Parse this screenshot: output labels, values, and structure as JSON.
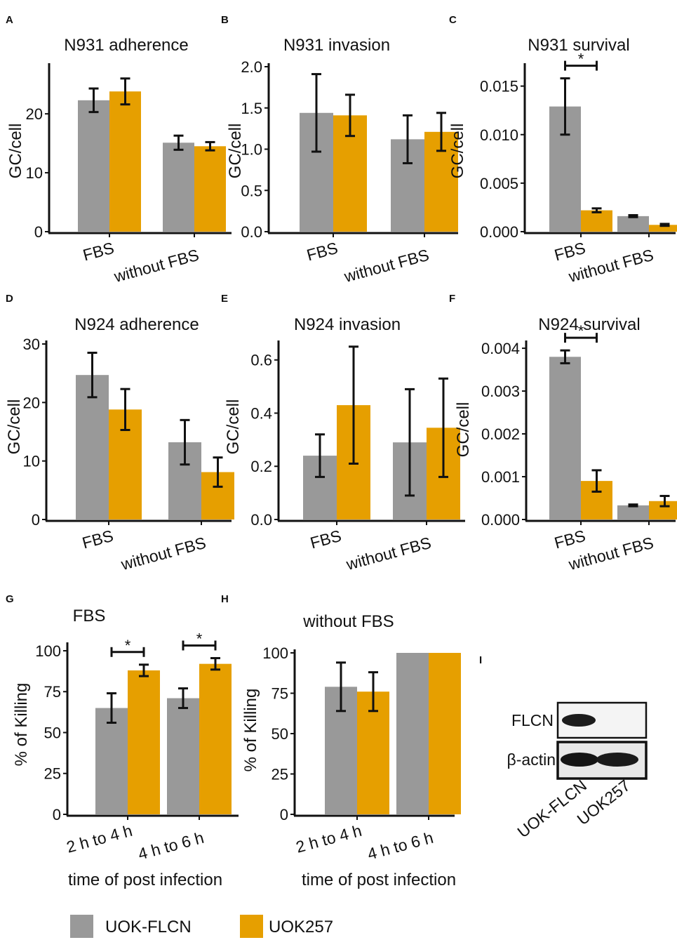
{
  "chart_data": [
    {
      "id": "A",
      "letter": "A",
      "type": "bar",
      "title": "N931 adherence",
      "ylabel": "GC/cell",
      "xlabel": "",
      "categories": [
        "FBS",
        "without FBS"
      ],
      "ylim": [
        0,
        28
      ],
      "yticks": [
        0,
        10,
        20
      ],
      "tick_labels": [
        "0",
        "10",
        "20"
      ],
      "series": [
        {
          "name": "UOK-FLCN",
          "values": [
            22.3,
            15.1
          ],
          "errors": [
            2.0,
            1.2
          ]
        },
        {
          "name": "UOK257",
          "values": [
            23.8,
            14.5
          ],
          "errors": [
            2.2,
            0.7
          ]
        }
      ],
      "significance": []
    },
    {
      "id": "B",
      "letter": "B",
      "type": "bar",
      "title": "N931 invasion",
      "ylabel": "GC/cell",
      "xlabel": "",
      "categories": [
        "FBS",
        "without FBS"
      ],
      "ylim": [
        0,
        2.0
      ],
      "yticks": [
        0,
        0.5,
        1,
        1.5,
        2
      ],
      "tick_labels": [
        "0.0",
        "0.5",
        "1.0",
        "1.5",
        "2.0"
      ],
      "series": [
        {
          "name": "UOK-FLCN",
          "values": [
            1.44,
            1.12
          ],
          "errors": [
            0.47,
            0.29
          ]
        },
        {
          "name": "UOK257",
          "values": [
            1.41,
            1.21
          ],
          "errors": [
            0.25,
            0.23
          ]
        }
      ],
      "significance": []
    },
    {
      "id": "C",
      "letter": "C",
      "type": "bar",
      "title": "N931 survival",
      "ylabel": "GC/cell",
      "xlabel": "",
      "categories": [
        "FBS",
        "without FBS"
      ],
      "ylim": [
        0,
        0.017
      ],
      "yticks": [
        0,
        0.005,
        0.01,
        0.015
      ],
      "tick_labels": [
        "0.000",
        "0.005",
        "0.010",
        "0.015"
      ],
      "series": [
        {
          "name": "UOK-FLCN",
          "values": [
            0.0129,
            0.0016
          ],
          "errors": [
            0.0029,
            0.0001
          ]
        },
        {
          "name": "UOK257",
          "values": [
            0.0022,
            0.0007
          ],
          "errors": [
            0.0002,
            0.0001
          ]
        }
      ],
      "significance": [
        {
          "category_index": 0,
          "label": "*"
        }
      ]
    },
    {
      "id": "D",
      "letter": "D",
      "type": "bar",
      "title": "N924 adherence",
      "ylabel": "GC/cell",
      "xlabel": "",
      "categories": [
        "FBS",
        "without FBS"
      ],
      "ylim": [
        0,
        30
      ],
      "yticks": [
        0,
        10,
        20,
        30
      ],
      "tick_labels": [
        "0",
        "10",
        "20",
        "30"
      ],
      "series": [
        {
          "name": "UOK-FLCN",
          "values": [
            24.7,
            13.2
          ],
          "errors": [
            3.8,
            3.8
          ]
        },
        {
          "name": "UOK257",
          "values": [
            18.8,
            8.1
          ],
          "errors": [
            3.5,
            2.5
          ]
        }
      ],
      "significance": []
    },
    {
      "id": "E",
      "letter": "E",
      "type": "bar",
      "title": "N924 invasion",
      "ylabel": "GC/cell",
      "xlabel": "",
      "categories": [
        "FBS",
        "without FBS"
      ],
      "ylim": [
        0,
        0.66
      ],
      "yticks": [
        0,
        0.2,
        0.4,
        0.6
      ],
      "tick_labels": [
        "0.0",
        "0.2",
        "0.4",
        "0.6"
      ],
      "series": [
        {
          "name": "UOK-FLCN",
          "values": [
            0.24,
            0.29
          ],
          "errors": [
            0.08,
            0.2
          ]
        },
        {
          "name": "UOK257",
          "values": [
            0.43,
            0.345
          ],
          "errors": [
            0.22,
            0.185
          ]
        }
      ],
      "significance": []
    },
    {
      "id": "F",
      "letter": "F",
      "type": "bar",
      "title": "N924 survival",
      "ylabel": "GC/cell",
      "xlabel": "",
      "categories": [
        "FBS",
        "without FBS"
      ],
      "ylim": [
        0,
        0.0041
      ],
      "yticks": [
        0,
        0.001,
        0.002,
        0.003,
        0.004
      ],
      "tick_labels": [
        "0.000",
        "0.001",
        "0.002",
        "0.003",
        "0.004"
      ],
      "series": [
        {
          "name": "UOK-FLCN",
          "values": [
            0.0038,
            0.00033
          ],
          "errors": [
            0.00015,
            2e-05
          ]
        },
        {
          "name": "UOK257",
          "values": [
            0.0009,
            0.00043
          ],
          "errors": [
            0.00025,
            0.00012
          ]
        }
      ],
      "significance": [
        {
          "category_index": 0,
          "label": "*"
        }
      ]
    },
    {
      "id": "G",
      "letter": "G",
      "type": "bar",
      "title": "FBS",
      "ylabel": "% of Killing",
      "xlabel": "time of post infection",
      "categories": [
        "2 h to 4 h",
        "4 h to 6 h"
      ],
      "ylim": [
        0,
        103
      ],
      "yticks": [
        0,
        25,
        50,
        75,
        100
      ],
      "tick_labels": [
        "0",
        "25",
        "50",
        "75",
        "100"
      ],
      "series": [
        {
          "name": "UOK-FLCN",
          "values": [
            65,
            71
          ],
          "errors": [
            9,
            6
          ]
        },
        {
          "name": "UOK257",
          "values": [
            88,
            92
          ],
          "errors": [
            3.5,
            3.5
          ]
        }
      ],
      "significance": [
        {
          "category_index": 0,
          "label": "*"
        },
        {
          "category_index": 1,
          "label": "*"
        }
      ]
    },
    {
      "id": "H",
      "letter": "H",
      "type": "bar",
      "title": "without FBS",
      "ylabel": "% of Killing",
      "xlabel": "time of post infection",
      "categories": [
        "2 h to 4 h",
        "4 h to 6 h"
      ],
      "ylim": [
        0,
        100
      ],
      "yticks": [
        0,
        25,
        50,
        75,
        100
      ],
      "tick_labels": [
        "0",
        "25",
        "50",
        "75",
        "100"
      ],
      "series": [
        {
          "name": "UOK-FLCN",
          "values": [
            79,
            100
          ],
          "errors": [
            15,
            0
          ]
        },
        {
          "name": "UOK257",
          "values": [
            76,
            100
          ],
          "errors": [
            12,
            0
          ]
        }
      ],
      "significance": []
    }
  ],
  "legend": {
    "items": [
      {
        "name": "UOK-FLCN",
        "color": "#999999"
      },
      {
        "name": "UOK257",
        "color": "#E69F00"
      }
    ]
  },
  "blot": {
    "letter": "I",
    "rows": [
      "FLCN",
      "β-actin"
    ],
    "lanes": [
      "UOK-FLCN",
      "UOK257"
    ]
  }
}
